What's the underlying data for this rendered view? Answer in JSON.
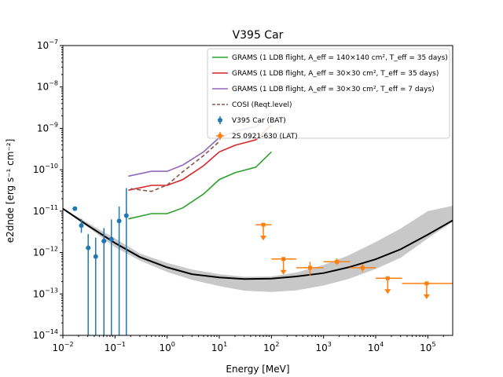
{
  "chart_data": {
    "type": "scatter",
    "title": "V395 Car",
    "xlabel": "Energy [MeV]",
    "ylabel": "e2dnde [erg s⁻¹ cm⁻²]",
    "xscale": "log",
    "yscale": "log",
    "xlim": [
      0.01,
      300000
    ],
    "ylim": [
      1e-14,
      1e-07
    ],
    "x_ticks": [
      {
        "value": 0.01,
        "base": "10",
        "exp": "−2"
      },
      {
        "value": 0.1,
        "base": "10",
        "exp": "−1"
      },
      {
        "value": 1,
        "base": "10",
        "exp": "0"
      },
      {
        "value": 10,
        "base": "10",
        "exp": "1"
      },
      {
        "value": 100,
        "base": "10",
        "exp": "2"
      },
      {
        "value": 1000,
        "base": "10",
        "exp": "3"
      },
      {
        "value": 10000,
        "base": "10",
        "exp": "4"
      },
      {
        "value": 100000,
        "base": "10",
        "exp": "5"
      }
    ],
    "y_ticks": [
      {
        "value": 1e-14,
        "base": "10",
        "exp": "−14"
      },
      {
        "value": 1e-13,
        "base": "10",
        "exp": "−13"
      },
      {
        "value": 1e-12,
        "base": "10",
        "exp": "−12"
      },
      {
        "value": 1e-11,
        "base": "10",
        "exp": "−11"
      },
      {
        "value": 1e-10,
        "base": "10",
        "exp": "−10"
      },
      {
        "value": 1e-09,
        "base": "10",
        "exp": "−9"
      },
      {
        "value": 1e-08,
        "base": "10",
        "exp": "−8"
      },
      {
        "value": 1e-07,
        "base": "10",
        "exp": "−7"
      }
    ],
    "grid": false,
    "legend_position": "top-right",
    "legend": [
      {
        "label": "GRAMS (1 LDB flight, A_eff = 140×140 cm², T_eff = 35 days)",
        "color": "#2ca02c",
        "style": "solid"
      },
      {
        "label": "GRAMS (1 LDB flight, A_eff = 30×30 cm², T_eff = 35 days)",
        "color": "#d62728",
        "style": "solid"
      },
      {
        "label": "GRAMS (1 LDB flight, A_eff = 30×30 cm², T_eff = 7 days)",
        "color": "#9467bd",
        "style": "solid"
      },
      {
        "label": "COSI (Reqt.level)",
        "color": "#8c564b",
        "style": "dashed"
      },
      {
        "label": "V395 Car (BAT)",
        "color": "#1f77b4",
        "style": "errorbar"
      },
      {
        "label": "2S 0921-630 (LAT)",
        "color": "#ff7f0e",
        "style": "errorbar-square"
      }
    ],
    "series": [
      {
        "name": "GRAMS (1 LDB flight, A_eff = 140×140 cm², T_eff = 35 days)",
        "kind": "line",
        "color": "#2ca02c",
        "dash": "",
        "x": [
          0.18,
          0.5,
          1,
          2,
          5,
          10,
          20,
          50,
          100
        ],
        "y": [
          6.5e-12,
          8.7e-12,
          8.7e-12,
          1.2e-11,
          2.6e-11,
          5.8e-11,
          8.5e-11,
          1.15e-10,
          2.7e-10
        ]
      },
      {
        "name": "GRAMS (1 LDB flight, A_eff = 30×30 cm², T_eff = 35 days)",
        "kind": "line",
        "color": "#d62728",
        "dash": "",
        "x": [
          0.18,
          0.5,
          1,
          2,
          5,
          10,
          20,
          50,
          100
        ],
        "y": [
          3.2e-11,
          4.2e-11,
          4.2e-11,
          5.8e-11,
          1.25e-10,
          2.7e-10,
          3.9e-10,
          5.3e-10,
          1.2e-09
        ]
      },
      {
        "name": "GRAMS (1 LDB flight, A_eff = 30×30 cm², T_eff = 7 days)",
        "kind": "line",
        "color": "#9467bd",
        "dash": "",
        "x": [
          0.18,
          0.5,
          1,
          2,
          5,
          10,
          20,
          50,
          100
        ],
        "y": [
          7e-11,
          9.2e-11,
          9.2e-11,
          1.3e-10,
          2.7e-10,
          6e-10,
          8.5e-10,
          1.1e-09,
          2.4e-09
        ]
      },
      {
        "name": "COSI (Reqt.level)",
        "kind": "line",
        "color": "#8c564b",
        "dash": "5,3",
        "x": [
          0.2,
          0.5,
          1,
          2,
          5,
          10
        ],
        "y": [
          3.5e-11,
          3e-11,
          4.3e-11,
          9e-11,
          2.2e-10,
          4.8e-10
        ]
      },
      {
        "name": "V395 Car (BAT)",
        "kind": "errorbar",
        "color": "#1f77b4",
        "marker": "circle",
        "points": [
          {
            "x": 0.017,
            "y": 1.15e-11,
            "yerr_low": 1.05e-11,
            "yerr_high": 1.25e-11,
            "xerr_low": 0.016,
            "xerr_high": 0.018
          },
          {
            "x": 0.0226,
            "y": 4.5e-12,
            "yerr_low": 3e-12,
            "yerr_high": 6.5e-12,
            "xerr_low": 0.022,
            "xerr_high": 0.0232
          },
          {
            "x": 0.0306,
            "y": 1.3e-12,
            "yerr_low": 1e-14,
            "yerr_high": 2.8e-12,
            "xerr_low": 0.029,
            "xerr_high": 0.0322
          },
          {
            "x": 0.0426,
            "y": 8e-13,
            "yerr_low": 1e-14,
            "yerr_high": 2.3e-12,
            "xerr_low": 0.04,
            "xerr_high": 0.045
          },
          {
            "x": 0.0613,
            "y": 1.9e-12,
            "yerr_low": 1e-14,
            "yerr_high": 3.9e-12,
            "xerr_low": 0.055,
            "xerr_high": 0.068
          },
          {
            "x": 0.0853,
            "y": 2.1e-12,
            "yerr_low": 1e-14,
            "yerr_high": 6.3e-12,
            "xerr_low": 0.078,
            "xerr_high": 0.093
          },
          {
            "x": 0.12,
            "y": 5.8e-12,
            "yerr_low": 1e-14,
            "yerr_high": 1.3e-11,
            "xerr_low": 0.11,
            "xerr_high": 0.13
          },
          {
            "x": 0.165,
            "y": 7.8e-12,
            "yerr_low": 1e-14,
            "yerr_high": 3.6e-11,
            "xerr_low": 0.155,
            "xerr_high": 0.175
          }
        ]
      },
      {
        "name": "2S 0921-630 (LAT)",
        "kind": "errorbar",
        "color": "#ff7f0e",
        "marker": "square",
        "points": [
          {
            "x": 70,
            "y": 4.7e-12,
            "xerr_low": 50,
            "xerr_high": 100,
            "upper_limit": true
          },
          {
            "x": 170,
            "y": 7e-13,
            "xerr_low": 100,
            "xerr_high": 300,
            "upper_limit": true
          },
          {
            "x": 550,
            "y": 4.3e-13,
            "yerr_low": 2.8e-13,
            "yerr_high": 6e-13,
            "xerr_low": 300,
            "xerr_high": 1000
          },
          {
            "x": 1800,
            "y": 6e-13,
            "yerr_low": 5e-13,
            "yerr_high": 7.2e-13,
            "xerr_low": 1000,
            "xerr_high": 3200
          },
          {
            "x": 5600,
            "y": 4.3e-13,
            "yerr_low": 3.4e-13,
            "yerr_high": 5.3e-13,
            "xerr_low": 3200,
            "xerr_high": 10000
          },
          {
            "x": 17000,
            "y": 2.4e-13,
            "xerr_low": 10000,
            "xerr_high": 32000,
            "upper_limit": true
          },
          {
            "x": 95000,
            "y": 1.8e-13,
            "xerr_low": 32000,
            "xerr_high": 300000,
            "upper_limit": true
          }
        ]
      },
      {
        "name": "",
        "kind": "band",
        "color": "#c8c8c8",
        "x": [
          0.01,
          0.03,
          0.1,
          0.3,
          1,
          3,
          10,
          30,
          100,
          300,
          1000,
          3000,
          10000,
          30000,
          100000,
          300000
        ],
        "y_low": [
          1.1e-11,
          4.1e-12,
          1.35e-12,
          6.4e-13,
          3.4e-13,
          2.2e-13,
          1.55e-13,
          1.2e-13,
          1.12e-13,
          1.22e-13,
          1.6e-13,
          2.3e-13,
          4e-13,
          7.5e-13,
          2.2e-12,
          5.5e-12
        ],
        "y_high": [
          1.2e-11,
          5.2e-12,
          2.2e-12,
          9.5e-13,
          5.6e-13,
          3.9e-13,
          3e-13,
          2.6e-13,
          2.65e-13,
          3.3e-13,
          5e-13,
          8.5e-13,
          1.8e-12,
          3.8e-12,
          1e-11,
          1.35e-11
        ]
      },
      {
        "name": "",
        "kind": "line",
        "color": "#000000",
        "dash": "",
        "x": [
          0.01,
          0.03,
          0.1,
          0.3,
          1,
          3,
          10,
          30,
          100,
          300,
          1000,
          3000,
          10000,
          30000,
          100000,
          300000
        ],
        "y": [
          1.15e-11,
          4.5e-12,
          1.7e-12,
          7.8e-13,
          4.4e-13,
          3e-13,
          2.5e-13,
          2.3e-13,
          2.35e-13,
          2.65e-13,
          3.2e-13,
          4.4e-13,
          6.9e-13,
          1.2e-12,
          2.7e-12,
          6e-12
        ]
      }
    ]
  }
}
